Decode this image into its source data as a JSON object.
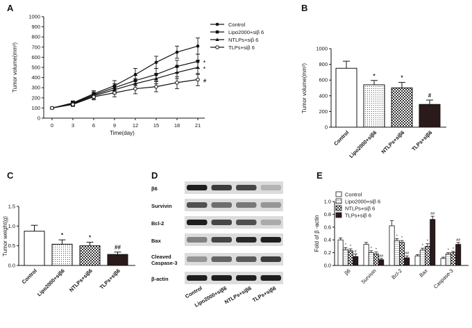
{
  "panels": {
    "A": "A",
    "B": "B",
    "C": "C",
    "D": "D",
    "E": "E"
  },
  "chart_data": [
    {
      "id": "A",
      "type": "line",
      "title": "",
      "xlabel": "Time(day)",
      "ylabel": "Tumor volume(mm³)",
      "x": [
        0,
        3,
        6,
        9,
        12,
        15,
        18,
        21
      ],
      "xticks": [
        "0",
        "3",
        "6",
        "9",
        "12",
        "15",
        "18",
        "21"
      ],
      "yticks": [
        "0",
        "100",
        "200",
        "300",
        "400",
        "500",
        "600",
        "700",
        "800",
        "900",
        "1000"
      ],
      "ylim": [
        0,
        1000
      ],
      "legend_position": "top-right",
      "series": [
        {
          "name": "Control",
          "marker": "circle-filled",
          "values": [
            100,
            150,
            240,
            320,
            430,
            550,
            650,
            710
          ],
          "errors": [
            10,
            20,
            30,
            50,
            60,
            60,
            60,
            80
          ]
        },
        {
          "name": "Lipo2000+siβ 6",
          "marker": "square",
          "values": [
            100,
            145,
            230,
            300,
            370,
            430,
            510,
            560
          ],
          "errors": [
            10,
            20,
            30,
            40,
            50,
            60,
            60,
            70
          ]
        },
        {
          "name": "NTLPs+siβ 6",
          "marker": "triangle",
          "values": [
            100,
            140,
            220,
            280,
            340,
            390,
            450,
            500
          ],
          "errors": [
            10,
            20,
            30,
            40,
            50,
            50,
            60,
            70
          ]
        },
        {
          "name": "TLPs+siβ 6",
          "marker": "circle-open",
          "values": [
            100,
            135,
            210,
            250,
            290,
            310,
            350,
            380
          ],
          "errors": [
            10,
            20,
            30,
            40,
            50,
            50,
            60,
            60
          ]
        }
      ],
      "annotations": [
        "*",
        "*",
        "#"
      ]
    },
    {
      "id": "B",
      "type": "bar",
      "title": "",
      "xlabel": "",
      "ylabel": "Tumor volume(mm³)",
      "categories": [
        "Control",
        "Lipo2000+siβ6",
        "NTLPs+siβ6",
        "TLPs+siβ6"
      ],
      "values": [
        750,
        540,
        500,
        290
      ],
      "errors": [
        90,
        55,
        70,
        55
      ],
      "ylim": [
        0,
        1000
      ],
      "yticks": [
        "0",
        "200",
        "400",
        "600",
        "800",
        "1000"
      ],
      "annotations": [
        "",
        "*",
        "*",
        "#"
      ]
    },
    {
      "id": "C",
      "type": "bar",
      "title": "",
      "xlabel": "",
      "ylabel": "Tumor weight(g)",
      "categories": [
        "Control",
        "Lipo2000+siβ6",
        "NTLPs+siβ6",
        "TLPs+siβ6"
      ],
      "values": [
        0.87,
        0.54,
        0.5,
        0.28
      ],
      "errors": [
        0.15,
        0.11,
        0.09,
        0.06
      ],
      "ylim": [
        0,
        1.5
      ],
      "yticks": [
        "0.0",
        "0.5",
        "1.0",
        "1.5"
      ],
      "annotations": [
        "",
        "*",
        "*",
        "##"
      ]
    },
    {
      "id": "E",
      "type": "bar",
      "title": "",
      "xlabel": "",
      "ylabel": "Fold of β -actin",
      "categories": [
        "β6",
        "Survivin",
        "Bcl-2",
        "Bax",
        "Caspase-3"
      ],
      "ylim": [
        0,
        1.0
      ],
      "yticks": [
        "0.0",
        "0.2",
        "0.4",
        "0.6",
        "0.8",
        "1.0"
      ],
      "legend_position": "top-left",
      "series": [
        {
          "name": "Control",
          "values": [
            0.4,
            0.33,
            0.62,
            0.15,
            0.11
          ],
          "errors": [
            0.03,
            0.03,
            0.08,
            0.02,
            0.02
          ]
        },
        {
          "name": "Lipo2000+siβ 6",
          "values": [
            0.25,
            0.2,
            0.39,
            0.24,
            0.18
          ],
          "errors": [
            0.03,
            0.03,
            0.03,
            0.03,
            0.02
          ]
        },
        {
          "name": "NTLPs+siβ 6",
          "values": [
            0.23,
            0.18,
            0.36,
            0.3,
            0.2
          ],
          "errors": [
            0.03,
            0.03,
            0.03,
            0.04,
            0.02
          ]
        },
        {
          "name": "TLPs+siβ 6",
          "values": [
            0.14,
            0.09,
            0.12,
            0.72,
            0.33
          ],
          "errors": [
            0.04,
            0.02,
            0.03,
            0.05,
            0.03
          ]
        }
      ],
      "annotations": [
        [
          "",
          "*",
          "*",
          "#"
        ],
        [
          "",
          "*",
          "*",
          "##"
        ],
        [
          "",
          "*",
          "*",
          "##"
        ],
        [
          "",
          "*",
          "*",
          "##"
        ],
        [
          "",
          "*",
          "*",
          "##"
        ]
      ]
    }
  ],
  "blot": {
    "rows": [
      "β6",
      "Survivin",
      "Bcl-2",
      "Bax",
      "Cleaved Caspase-3",
      "β-actin"
    ],
    "lanes": [
      "Control",
      "Lipo2000+siβ6",
      "NTLPs+siβ6",
      "TLPs+siβ6"
    ],
    "intensity": [
      [
        0.95,
        0.8,
        0.75,
        0.2
      ],
      [
        0.7,
        0.55,
        0.5,
        0.35
      ],
      [
        0.95,
        0.75,
        0.7,
        0.25
      ],
      [
        0.45,
        0.75,
        0.9,
        0.95
      ],
      [
        0.35,
        0.6,
        0.65,
        0.8
      ],
      [
        0.95,
        0.95,
        0.95,
        0.95
      ]
    ]
  }
}
